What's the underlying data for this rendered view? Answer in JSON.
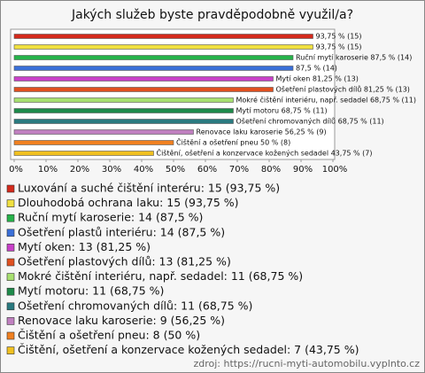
{
  "chart_data": {
    "type": "hbar",
    "title": "Jakých služeb byste pravděpodobně využil/a?",
    "categories": [
      "Luxování a suché čištění interéru: 15 (93,75 %)",
      "Dlouhodobá ochrana laku: 15 (93,75 %)",
      "Ruční mytí karoserie: 14 (87,5 %)",
      "Ošetření plastů interiéru: 14 (87,5 %)",
      "Mytí oken: 13 (81,25 %)",
      "Ošetření plastových dílů: 13 (81,25 %)",
      "Mokré čištění interiéru, např. sedadel: 11 (68,75 %)",
      "Mytí motoru: 11 (68,75 %)",
      "Ošetření chromovaných dílů: 11 (68,75 %)",
      "Renovace laku karoserie: 9 (56,25 %)",
      "Čištění a ošetření pneu: 8 (50 %)",
      "Čištění, ošetření a konzervace kožených sedadel: 7 (43,75 %)"
    ],
    "values": [
      93.75,
      93.75,
      87.5,
      87.5,
      81.25,
      81.25,
      68.75,
      68.75,
      68.75,
      56.25,
      50,
      43.75
    ],
    "value_labels": [
      "93,75 % (15)",
      "93,75 % (15)",
      "Ruční mytí karoserie 87,5 % (14)",
      "87,5 % (14)",
      "Mytí oken 81,25 % (13)",
      "Ošetření plastových dílů 81,25 % (13)",
      "Mokré čištění interiéru, např. sedadel 68,75 % (11)",
      "Mytí motoru 68,75 % (11)",
      "Ošetření chromovaných dílů 68,75 % (11)",
      "Renovace laku karoserie 56,25 % (9)",
      "Čištění a ošetření pneu 50 % (8)",
      "Čištění, ošetření a konzervace kožených sedadel 43,75 % (7)"
    ],
    "colors": [
      "#d42a1c",
      "#f0e040",
      "#26b34a",
      "#3a6fd8",
      "#c840c8",
      "#e05020",
      "#a8e070",
      "#1e8a4a",
      "#2a7a80",
      "#c080c0",
      "#f08020",
      "#f0c020"
    ],
    "xlim": [
      0,
      100
    ],
    "xticks": [
      {
        "value": 0,
        "label": "0%"
      },
      {
        "value": 10,
        "label": "10%"
      },
      {
        "value": 20,
        "label": "20%"
      },
      {
        "value": 30,
        "label": "30%"
      },
      {
        "value": 40,
        "label": "40%"
      },
      {
        "value": 50,
        "label": "50%"
      },
      {
        "value": 60,
        "label": "60%"
      },
      {
        "value": 70,
        "label": "70%"
      },
      {
        "value": 80,
        "label": "80%"
      },
      {
        "value": 90,
        "label": "90%"
      },
      {
        "value": 100,
        "label": "100%"
      }
    ],
    "grid": false,
    "source": "zdroj: https://rucni-myti-automobilu.vyplnto.cz"
  }
}
